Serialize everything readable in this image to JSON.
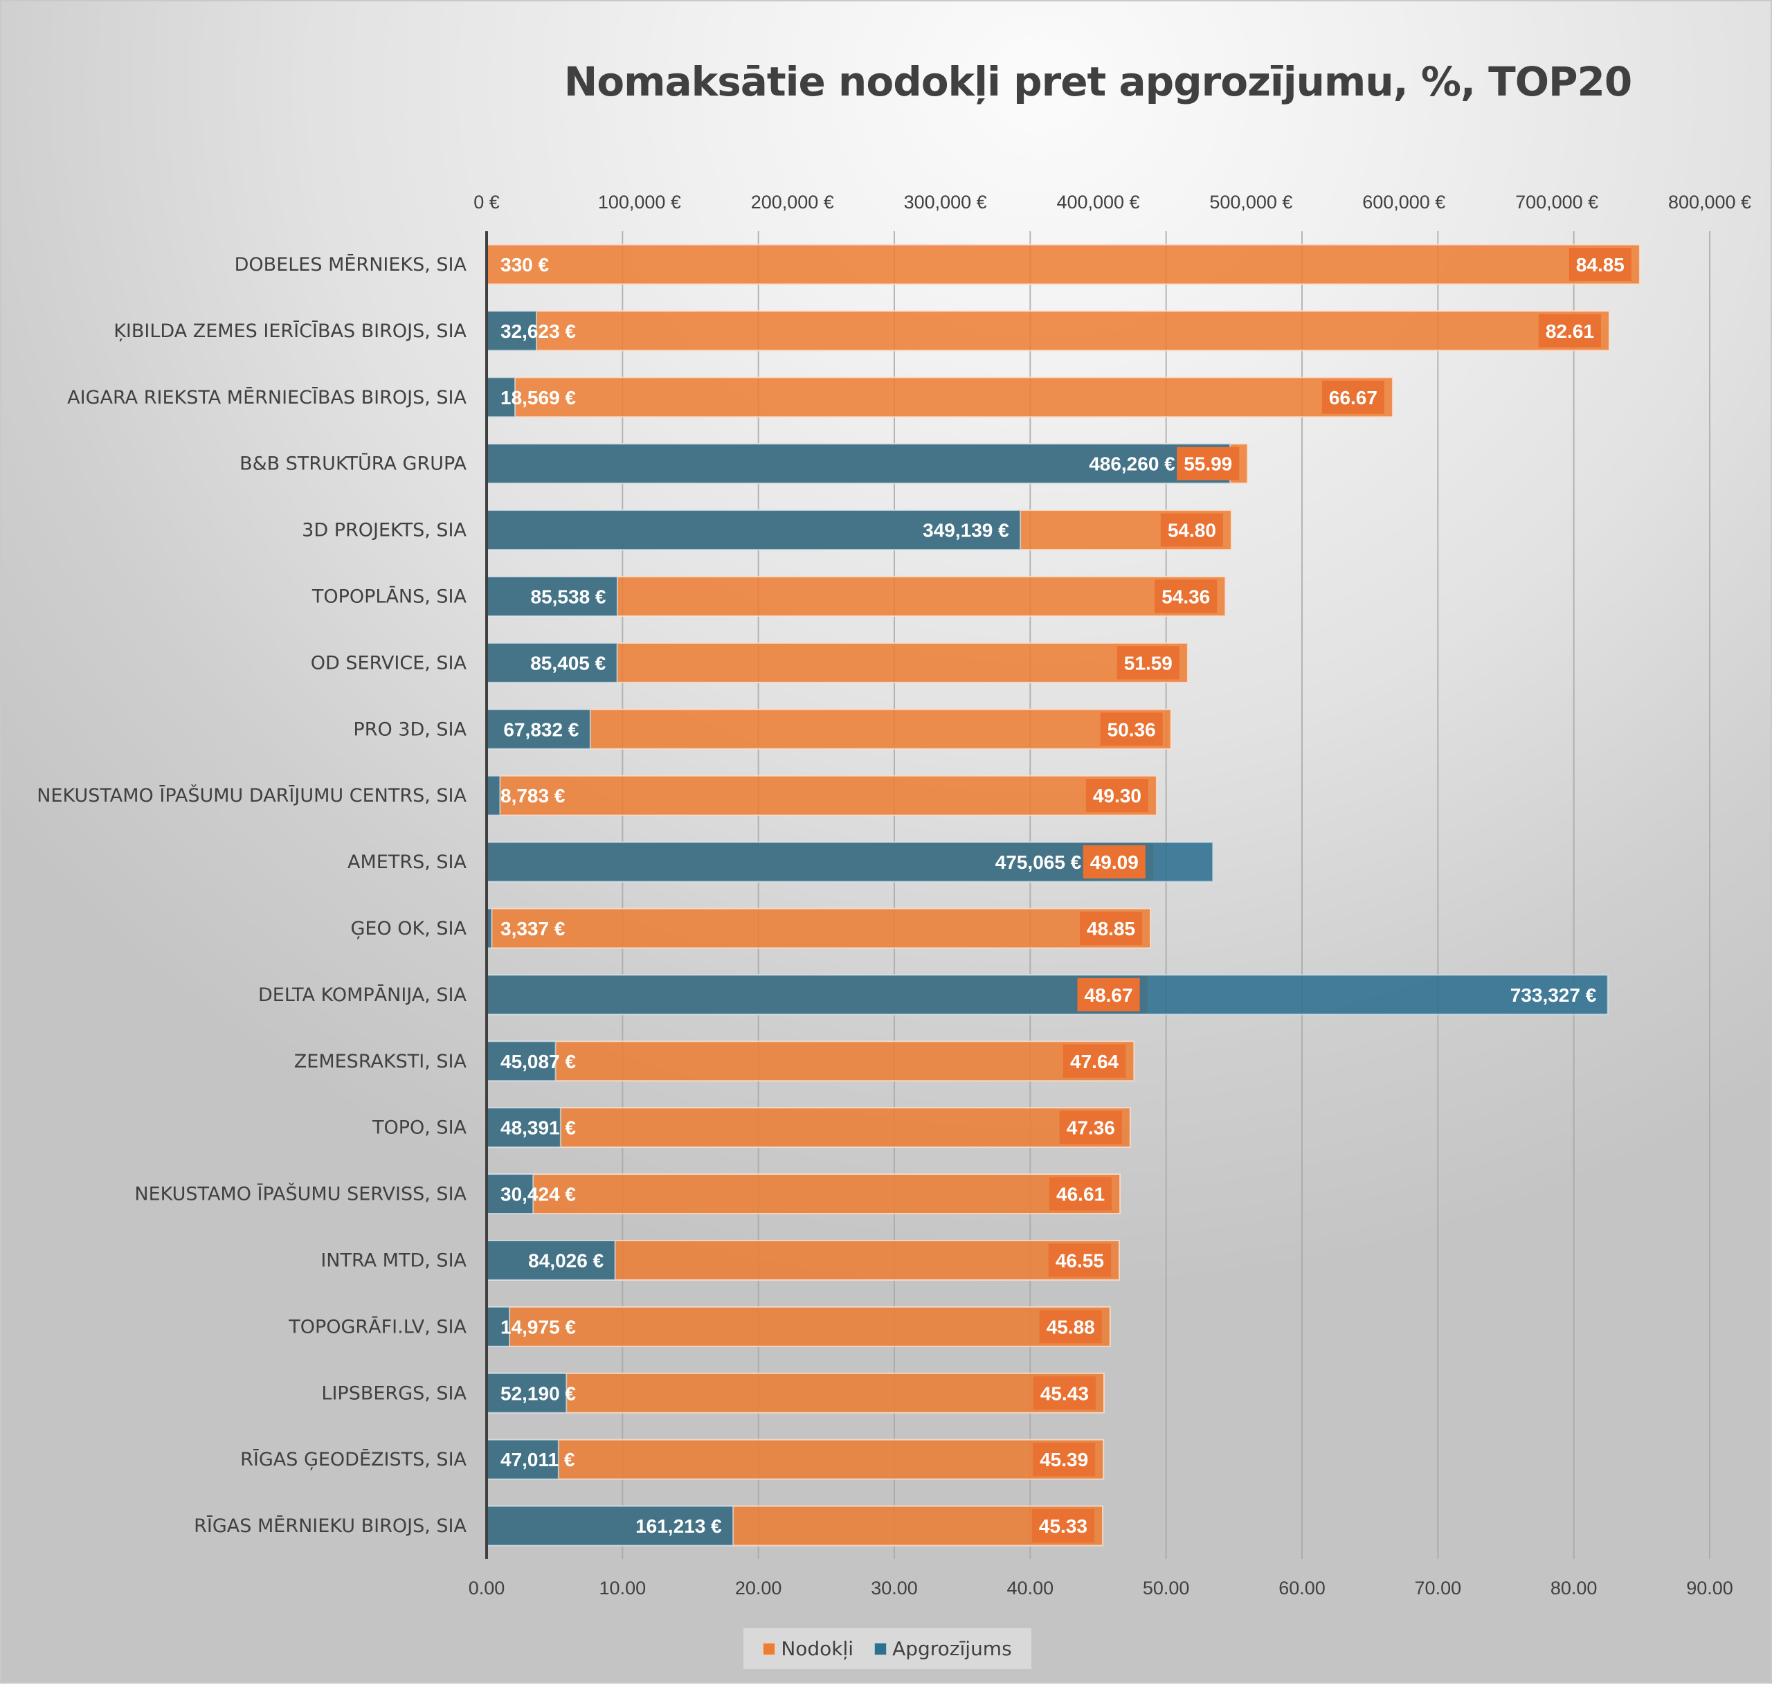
{
  "chart_data": {
    "type": "bar",
    "orientation": "horizontal",
    "title": "Nomaksātie nodokļi pret apgrozījumu, %, TOP20",
    "categories": [
      "DOBELES MĒRNIEKS, SIA",
      "ĶIBILDA ZEMES IERĪCĪBAS BIROJS, SIA",
      "AIGARA RIEKSTA MĒRNIECĪBAS BIROJS, SIA",
      "B&B STRUKTŪRA GRUPA",
      "3D PROJEKTS, SIA",
      "TOPOPLĀNS, SIA",
      "OD SERVICE, SIA",
      "PRO 3D, SIA",
      "NEKUSTAMO ĪPAŠUMU DARĪJUMU CENTRS, SIA",
      "AMETRS, SIA",
      "ĢEO OK, SIA",
      "DELTA KOMPĀNIJA, SIA",
      "ZEMESRAKSTI, SIA",
      "TOPO, SIA",
      "NEKUSTAMO ĪPAŠUMU SERVISS, SIA",
      "INTRA MTD, SIA",
      "TOPOGRĀFI.LV, SIA",
      "LIPSBERGS, SIA",
      "RĪGAS ĢEODĒZISTS, SIA",
      "RĪGAS MĒRNIEKU BIROJS, SIA"
    ],
    "series": [
      {
        "name": "Nodokļi",
        "axis": "bottom",
        "color": "#ed7d31",
        "label_box_color": "#e97132",
        "values": [
          84.85,
          82.61,
          66.67,
          55.99,
          54.8,
          54.36,
          51.59,
          50.36,
          49.3,
          49.09,
          48.85,
          48.67,
          47.64,
          47.36,
          46.61,
          46.55,
          45.88,
          45.43,
          45.39,
          45.33
        ],
        "labels": [
          "84.85",
          "82.61",
          "66.67",
          "55.99",
          "54.80",
          "54.36",
          "51.59",
          "50.36",
          "49.30",
          "49.09",
          "48.85",
          "48.67",
          "47.64",
          "47.36",
          "46.61",
          "46.55",
          "45.88",
          "45.43",
          "45.39",
          "45.33"
        ]
      },
      {
        "name": "Apgrozījums",
        "axis": "top",
        "color": "#2e7090",
        "values": [
          330,
          32623,
          18569,
          486260,
          349139,
          85538,
          85405,
          67832,
          8783,
          475065,
          3337,
          733327,
          45087,
          48391,
          30424,
          84026,
          14975,
          52190,
          47011,
          161213
        ],
        "labels": [
          "330 €",
          "32,623 €",
          "18,569 €",
          "486,260 €",
          "349,139 €",
          "85,538 €",
          "85,405 €",
          "67,832 €",
          "8,783 €",
          "475,065 €",
          "3,337 €",
          "733,327 €",
          "45,087 €",
          "48,391 €",
          "30,424 €",
          "84,026 €",
          "14,975 €",
          "52,190 €",
          "47,011 €",
          "161,213 €"
        ]
      }
    ],
    "x_bottom": {
      "range": [
        0,
        90
      ],
      "ticks": [
        0,
        10,
        20,
        30,
        40,
        50,
        60,
        70,
        80,
        90
      ],
      "tick_labels": [
        "0.00",
        "10.00",
        "20.00",
        "30.00",
        "40.00",
        "50.00",
        "60.00",
        "70.00",
        "80.00",
        "90.00"
      ]
    },
    "x_top": {
      "range": [
        0,
        800000
      ],
      "ticks": [
        0,
        100000,
        200000,
        300000,
        400000,
        500000,
        600000,
        700000,
        800000
      ],
      "tick_labels": [
        "0 €",
        "100,000 €",
        "200,000 €",
        "300,000 €",
        "400,000 €",
        "500,000 €",
        "600,000 €",
        "700,000 €",
        "800,000 €"
      ]
    },
    "grid": "vertical major gridlines (bottom axis)",
    "legend": {
      "position": "bottom",
      "entries": [
        "Nodokļi",
        "Apgrozījums"
      ]
    }
  }
}
